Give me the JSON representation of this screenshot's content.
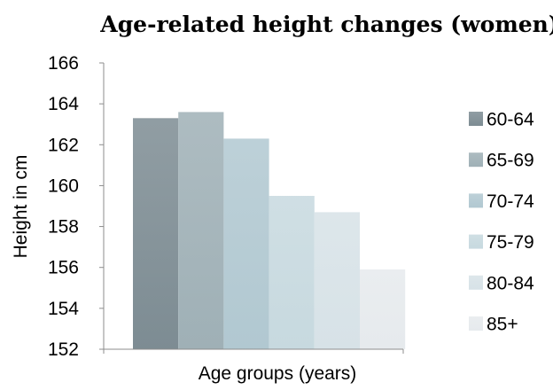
{
  "chart_data": {
    "type": "bar",
    "title": "Age-related height changes (women)",
    "xlabel": "Age groups (years)",
    "ylabel": "Height in cm",
    "ylim": [
      152,
      166
    ],
    "yticks": [
      152,
      154,
      156,
      158,
      160,
      162,
      164,
      166
    ],
    "grid": false,
    "legend_position": "right",
    "series": [
      {
        "name": "60-64",
        "values": [
          163.3
        ],
        "color": "#7d8c93"
      },
      {
        "name": "65-69",
        "values": [
          163.6
        ],
        "color": "#9fb0b6"
      },
      {
        "name": "70-74",
        "values": [
          162.3
        ],
        "color": "#b1c8d1"
      },
      {
        "name": "75-79",
        "values": [
          159.5
        ],
        "color": "#c7d9df"
      },
      {
        "name": "80-84",
        "values": [
          158.7
        ],
        "color": "#d7e2e7"
      },
      {
        "name": "85+",
        "values": [
          155.9
        ],
        "color": "#e6eaed"
      }
    ]
  }
}
